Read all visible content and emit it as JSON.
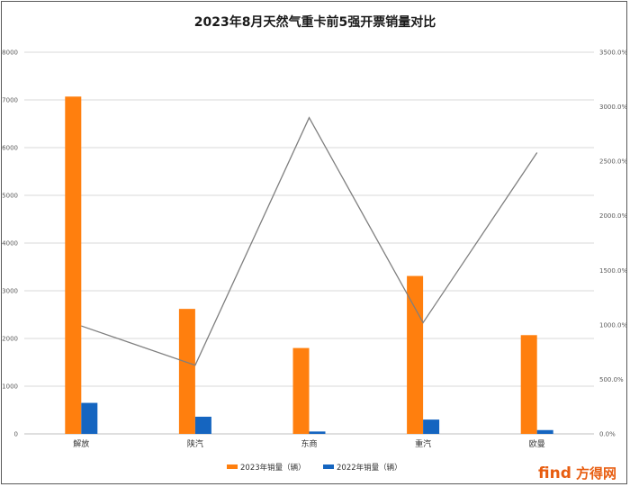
{
  "chart_data": {
    "type": "bar",
    "title": "2023年8月天然气重卡前5强开票销量对比",
    "categories": [
      "解放",
      "陕汽",
      "东商",
      "重汽",
      "欧曼"
    ],
    "series": [
      {
        "name": "2023年销量（辆）",
        "type": "bar",
        "axis": "left",
        "color": "#ff7f0e",
        "values": [
          7070,
          2620,
          1800,
          3310,
          2070
        ]
      },
      {
        "name": "2022年销量（辆）",
        "type": "bar",
        "axis": "left",
        "color": "#1565c0",
        "values": [
          650,
          360,
          50,
          300,
          80
        ]
      },
      {
        "type": "line",
        "axis": "right",
        "color": "#7f7f7f",
        "values": [
          990,
          630,
          2900,
          1020,
          2580
        ]
      }
    ],
    "ylim": [
      0,
      8000
    ],
    "yticks": [
      "0",
      "1000",
      "2000",
      "3000",
      "4000",
      "5000",
      "6000",
      "7000",
      "8000"
    ],
    "y2lim": [
      0,
      3500
    ],
    "y2ticks": [
      "0.0%",
      "500.0%",
      "1000.0%",
      "1500.0%",
      "2000.0%",
      "2500.0%",
      "3000.0%",
      "3500.0%"
    ],
    "grid": true,
    "legend": "bottom"
  },
  "watermark": {
    "find": "find",
    "brand": "方得网"
  }
}
